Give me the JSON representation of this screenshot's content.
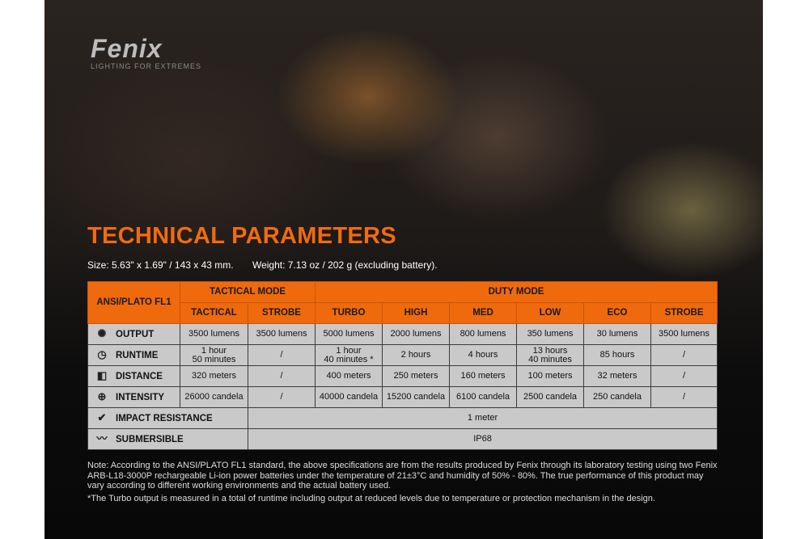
{
  "brand": {
    "logo": "Fenix",
    "tagline": "LIGHTING FOR EXTREMES"
  },
  "title": "TECHNICAL PARAMETERS",
  "size": "Size: 5.63\" x 1.69\" / 143 x 43 mm.",
  "weight": "Weight: 7.13 oz / 202 g (excluding battery).",
  "table": {
    "corner": "ANSI/PLATO FL1",
    "groups": [
      "TACTICAL MODE",
      "DUTY MODE"
    ],
    "modes": [
      "TACTICAL",
      "STROBE",
      "TURBO",
      "HIGH",
      "MED",
      "LOW",
      "ECO",
      "STROBE"
    ],
    "rows": [
      {
        "icon": "output-icon",
        "label": "OUTPUT",
        "values": [
          "3500 lumens",
          "3500 lumens",
          "5000 lumens",
          "2000 lumens",
          "800 lumens",
          "350 lumens",
          "30 lumens",
          "3500 lumens"
        ]
      },
      {
        "icon": "clock-icon",
        "label": "RUNTIME",
        "values": [
          "1 hour\n50 minutes",
          "/",
          "1 hour\n40 minutes *",
          "2 hours",
          "4 hours",
          "13 hours\n40 minutes",
          "85 hours",
          "/"
        ]
      },
      {
        "icon": "beam-icon",
        "label": "DISTANCE",
        "values": [
          "320 meters",
          "/",
          "400 meters",
          "250 meters",
          "160 meters",
          "100 meters",
          "32 meters",
          "/"
        ]
      },
      {
        "icon": "crosshair-icon",
        "label": "INTENSITY",
        "values": [
          "26000 candela",
          "/",
          "40000 candela",
          "15200 candela",
          "6100 candela",
          "2500 candela",
          "250 candela",
          "/"
        ]
      }
    ],
    "impact": {
      "icon": "impact-icon",
      "label": "IMPACT RESISTANCE",
      "value": "1 meter"
    },
    "submersible": {
      "icon": "submersible-icon",
      "label": "SUBMERSIBLE",
      "value": "IP68"
    }
  },
  "notes": [
    "Note: According to the ANSI/PLATO FL1 standard, the above specifications are from the results produced by Fenix through its laboratory testing using two Fenix ARB-L18-3000P rechargeable Li-ion power batteries under the temperature of 21±3°C and humidity of 50% - 80%. The true performance of this product may vary according to different working environments and the actual battery used.",
    "*The Turbo output is measured in a total of runtime including output at reduced levels due to temperature or protection mechanism in the design."
  ],
  "colors": {
    "accent": "#ef6a0c",
    "cell": "#c9c9c9"
  }
}
